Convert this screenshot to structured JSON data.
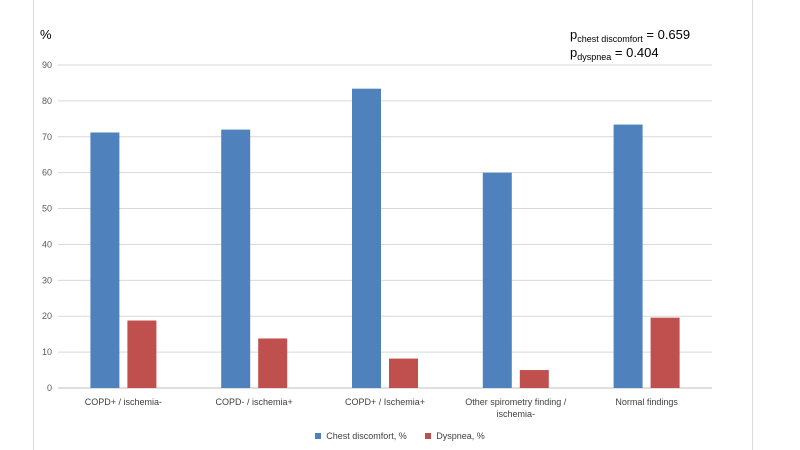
{
  "chart_data": {
    "type": "bar",
    "ylabel": "%",
    "ylim": [
      0,
      90
    ],
    "yticks": [
      0,
      10,
      20,
      30,
      40,
      50,
      60,
      70,
      80,
      90
    ],
    "grid": true,
    "legend_position": "bottom",
    "categories": [
      [
        "COPD+ / ischemia-"
      ],
      [
        "COPD- / ischemia+"
      ],
      [
        "COPD+ / Ischemia+"
      ],
      [
        "Other spirometry finding /",
        "ischemia-"
      ],
      [
        "Normal findings"
      ]
    ],
    "series": [
      {
        "name": "Chest discomfort, %",
        "color": "#4f81bd",
        "values": [
          71.2,
          72.0,
          83.4,
          60.0,
          73.4
        ]
      },
      {
        "name": "Dyspnea, %",
        "color": "#c0504d",
        "values": [
          18.8,
          13.8,
          8.2,
          5.0,
          19.6
        ]
      }
    ],
    "annotations": {
      "chest": {
        "prefix": "p",
        "sub": "chest discomfort",
        "value": "= 0.659"
      },
      "dyspnea": {
        "prefix": "p",
        "sub": "dyspnea",
        "value": "= 0.404"
      }
    }
  }
}
